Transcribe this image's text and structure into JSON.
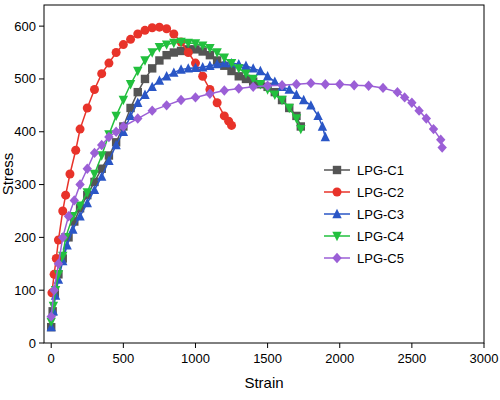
{
  "chart_data": {
    "type": "line",
    "x_label": "Strain",
    "y_label": "Stress",
    "xlim": [
      -50,
      3000
    ],
    "xticks": [
      0,
      500,
      1000,
      1500,
      2000,
      2500,
      3000
    ],
    "ylim": [
      0,
      640
    ],
    "yticks": [
      0,
      100,
      200,
      300,
      400,
      500,
      600
    ],
    "legend": "right",
    "series": [
      {
        "name": "LPG-C1",
        "color": "#555555",
        "marker": "square",
        "line_style": "solid",
        "x": [
          0,
          10,
          25,
          50,
          80,
          120,
          160,
          200,
          250,
          300,
          350,
          400,
          450,
          500,
          550,
          600,
          650,
          700,
          750,
          800,
          850,
          900,
          950,
          1000,
          1050,
          1100,
          1150,
          1200,
          1250,
          1300,
          1350,
          1400,
          1450,
          1500,
          1550,
          1600,
          1650,
          1700,
          1730
        ],
        "values": [
          30,
          60,
          95,
          130,
          160,
          200,
          230,
          255,
          280,
          305,
          330,
          355,
          380,
          410,
          445,
          475,
          500,
          520,
          535,
          545,
          550,
          553,
          556,
          556,
          552,
          545,
          535,
          525,
          515,
          505,
          500,
          495,
          490,
          485,
          475,
          460,
          445,
          430,
          410
        ]
      },
      {
        "name": "LPG-C2",
        "color": "#e8332a",
        "marker": "circle",
        "line_style": "solid",
        "x": [
          5,
          20,
          35,
          50,
          80,
          100,
          130,
          170,
          200,
          250,
          300,
          350,
          400,
          450,
          500,
          550,
          600,
          650,
          700,
          750,
          800,
          850,
          900,
          950,
          1000,
          1050,
          1100,
          1150,
          1200,
          1230,
          1250
        ],
        "values": [
          95,
          130,
          160,
          195,
          250,
          280,
          320,
          365,
          405,
          445,
          480,
          510,
          530,
          550,
          565,
          575,
          585,
          592,
          597,
          598,
          595,
          585,
          570,
          550,
          530,
          505,
          480,
          455,
          430,
          420,
          412
        ]
      },
      {
        "name": "LPG-C3",
        "color": "#2a56c6",
        "marker": "triangle",
        "line_style": "solid",
        "x": [
          0,
          15,
          30,
          50,
          80,
          110,
          150,
          200,
          250,
          300,
          350,
          400,
          450,
          500,
          550,
          600,
          650,
          700,
          750,
          800,
          850,
          900,
          950,
          1000,
          1050,
          1100,
          1150,
          1200,
          1250,
          1300,
          1350,
          1400,
          1450,
          1500,
          1550,
          1600,
          1650,
          1700,
          1750,
          1800,
          1850,
          1880,
          1900
        ],
        "values": [
          30,
          60,
          90,
          120,
          155,
          185,
          215,
          240,
          265,
          290,
          315,
          345,
          375,
          400,
          430,
          455,
          470,
          485,
          497,
          505,
          512,
          518,
          520,
          521,
          522,
          525,
          528,
          530,
          530,
          528,
          525,
          520,
          515,
          505,
          495,
          485,
          480,
          470,
          460,
          450,
          430,
          410,
          390
        ]
      },
      {
        "name": "LPG-C4",
        "color": "#22c03e",
        "marker": "triangle-down",
        "line_style": "solid",
        "x": [
          0,
          15,
          30,
          50,
          80,
          100,
          150,
          200,
          250,
          300,
          350,
          400,
          450,
          500,
          550,
          600,
          650,
          700,
          750,
          800,
          850,
          900,
          950,
          1000,
          1050,
          1100,
          1150,
          1200,
          1250,
          1300,
          1350,
          1400,
          1450,
          1500,
          1550,
          1600,
          1650,
          1700,
          1730
        ],
        "values": [
          40,
          70,
          100,
          130,
          165,
          200,
          240,
          260,
          285,
          320,
          355,
          395,
          430,
          460,
          490,
          515,
          535,
          550,
          560,
          565,
          568,
          570,
          568,
          567,
          563,
          558,
          550,
          540,
          530,
          520,
          510,
          500,
          490,
          480,
          470,
          460,
          445,
          425,
          405
        ]
      },
      {
        "name": "LPG-C5",
        "color": "#9b5fd6",
        "marker": "diamond",
        "line_style": "solid",
        "x": [
          0,
          20,
          50,
          80,
          120,
          160,
          200,
          250,
          300,
          350,
          400,
          450,
          500,
          600,
          700,
          800,
          900,
          1000,
          1100,
          1200,
          1300,
          1400,
          1500,
          1600,
          1700,
          1800,
          1900,
          2000,
          2100,
          2200,
          2300,
          2400,
          2450,
          2500,
          2550,
          2600,
          2650,
          2700,
          2710
        ],
        "values": [
          50,
          100,
          150,
          200,
          240,
          270,
          300,
          330,
          360,
          375,
          390,
          400,
          410,
          425,
          440,
          450,
          460,
          465,
          472,
          478,
          482,
          485,
          487,
          488,
          490,
          492,
          490,
          490,
          488,
          487,
          483,
          475,
          465,
          455,
          440,
          425,
          405,
          385,
          370
        ]
      }
    ]
  }
}
